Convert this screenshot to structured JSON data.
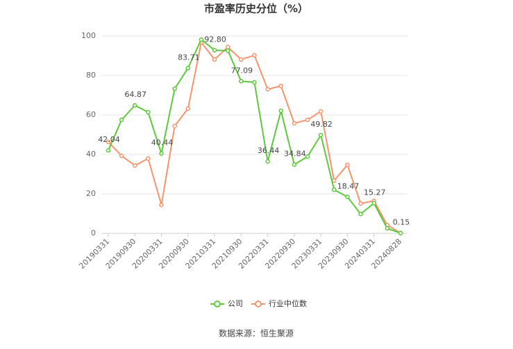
{
  "chart_data": {
    "type": "line",
    "title": "市盈率历史分位（%）",
    "categories": [
      "20190331",
      null,
      "20190930",
      null,
      "20200331",
      null,
      "20200930",
      null,
      "20210331",
      null,
      "20210930",
      null,
      "20220331",
      null,
      "20220930",
      null,
      "20230331",
      null,
      "20230930",
      null,
      "20240331",
      null,
      "20240828"
    ],
    "series": [
      {
        "name": "公司",
        "color": "#5cc93a",
        "values": [
          42.04,
          57.5,
          64.87,
          61.4,
          40.44,
          73.3,
          83.71,
          98.2,
          92.8,
          92.6,
          77.09,
          76.5,
          36.44,
          62.1,
          34.84,
          38.9,
          49.82,
          22.1,
          18.47,
          9.8,
          15.27,
          2.5,
          0.15
        ],
        "value_labels": [
          "42.04",
          null,
          "64.87",
          null,
          "40.44",
          null,
          "83.71",
          null,
          "92.80",
          null,
          "77.09",
          null,
          "36.44",
          null,
          "34.84",
          null,
          "49.82",
          null,
          "18.47",
          null,
          "15.27",
          null,
          "0.15"
        ]
      },
      {
        "name": "行业中位数",
        "color": "#f5946c",
        "values": [
          46.3,
          39.3,
          34.4,
          37.9,
          14.4,
          54.4,
          63.2,
          96.8,
          88.1,
          94.4,
          88.1,
          90.2,
          73.0,
          74.7,
          55.8,
          57.5,
          61.8,
          26.7,
          34.7,
          15.1,
          16.5,
          4.2,
          0.2
        ]
      }
    ],
    "ylim": [
      0,
      100
    ],
    "yticks": [
      0,
      20,
      40,
      60,
      80,
      100
    ],
    "grid": true,
    "legend": "bottom",
    "source": "数据来源：恒生聚源"
  }
}
